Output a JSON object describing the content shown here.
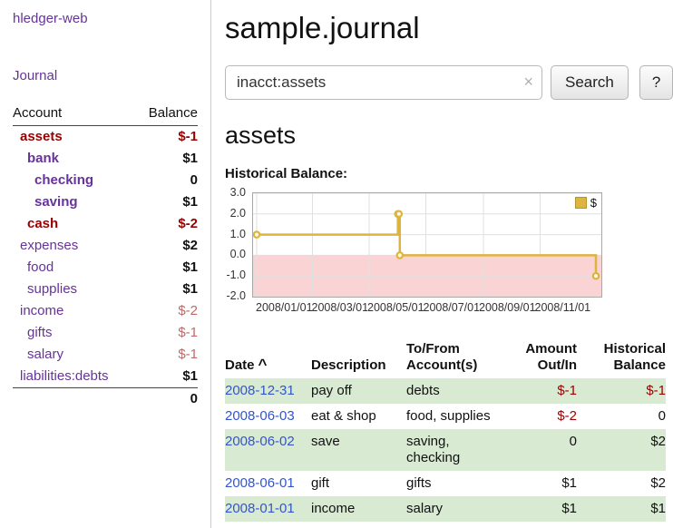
{
  "app": {
    "title": "hledger-web"
  },
  "sidebar": {
    "journal_link": "Journal",
    "accounts": {
      "account_header": "Account",
      "balance_header": "Balance",
      "rows": [
        {
          "name": "assets",
          "balance": "$-1"
        },
        {
          "name": "bank",
          "balance": "$1"
        },
        {
          "name": "checking",
          "balance": "0"
        },
        {
          "name": "saving",
          "balance": "$1"
        },
        {
          "name": "cash",
          "balance": "$-2"
        },
        {
          "name": "expenses",
          "balance": "$2"
        },
        {
          "name": "food",
          "balance": "$1"
        },
        {
          "name": "supplies",
          "balance": "$1"
        },
        {
          "name": "income",
          "balance": "$-2"
        },
        {
          "name": "gifts",
          "balance": "$-1"
        },
        {
          "name": "salary",
          "balance": "$-1"
        },
        {
          "name": "liabilities:debts",
          "balance": "$1"
        }
      ],
      "total": "0"
    }
  },
  "main": {
    "title": "sample.journal",
    "search": {
      "value": "inacct:assets",
      "clear_icon": "×",
      "search_button": "Search",
      "help_button": "?"
    },
    "account_heading": "assets",
    "chart_title": "Historical Balance:"
  },
  "chart_data": {
    "type": "line",
    "line_style": "step",
    "title": "Historical Balance",
    "legend": {
      "position": "top-right"
    },
    "series": [
      {
        "name": "$",
        "points": [
          {
            "date": "2008-01-01",
            "value": 1
          },
          {
            "date": "2008-06-01",
            "value": 2
          },
          {
            "date": "2008-06-02",
            "value": 2
          },
          {
            "date": "2008-06-03",
            "value": 0
          },
          {
            "date": "2008-12-31",
            "value": -1
          }
        ]
      }
    ],
    "xdomain": [
      "2008-01-01",
      "2008-12-31"
    ],
    "ylim": [
      -2,
      3
    ],
    "yticks": [
      {
        "value": 3,
        "label": "3.0"
      },
      {
        "value": 2,
        "label": "2.0"
      },
      {
        "value": 1,
        "label": "1.0"
      },
      {
        "value": 0,
        "label": "0.0"
      },
      {
        "value": -1,
        "label": "-1.0"
      },
      {
        "value": -2,
        "label": "-2.0"
      }
    ],
    "xticks": [
      {
        "date": "2008-01-01",
        "label": "2008/01/01"
      },
      {
        "date": "2008-03-01",
        "label": "2008/03/01"
      },
      {
        "date": "2008-05-01",
        "label": "2008/05/01"
      },
      {
        "date": "2008-07-01",
        "label": "2008/07/01"
      },
      {
        "date": "2008-09-01",
        "label": "2008/09/01"
      },
      {
        "date": "2008-11-01",
        "label": "2008/11/01"
      }
    ],
    "colors": {
      "line": "#ddb43d",
      "marker_fill": "#fffbe6",
      "negative_region": "#fad4d4",
      "grid": "#e0e0e0"
    }
  },
  "transactions": {
    "headers": {
      "date": "Date",
      "sort_icon": "^",
      "description": "Description",
      "account": "To/From Account(s)",
      "amount": "Amount Out/In",
      "balance": "Historical Balance"
    },
    "rows": [
      {
        "date": "2008-12-31",
        "description": "pay off",
        "account": "debts",
        "amount": "$-1",
        "balance": "$-1"
      },
      {
        "date": "2008-06-03",
        "description": "eat & shop",
        "account": "food, supplies",
        "amount": "$-2",
        "balance": "0"
      },
      {
        "date": "2008-06-02",
        "description": "save",
        "account": "saving, checking",
        "amount": "0",
        "balance": "$2"
      },
      {
        "date": "2008-06-01",
        "description": "gift",
        "account": "gifts",
        "amount": "$1",
        "balance": "$2"
      },
      {
        "date": "2008-01-01",
        "description": "income",
        "account": "salary",
        "amount": "$1",
        "balance": "$1"
      }
    ]
  },
  "theme": {
    "link_purple": "#663399",
    "date_link_blue": "#3355cc",
    "negative_red": "#990000",
    "soft_negative_red": "#bb6a6a",
    "row_highlight_green": "#d9ead3",
    "chart_line_gold": "#ddb43d"
  }
}
